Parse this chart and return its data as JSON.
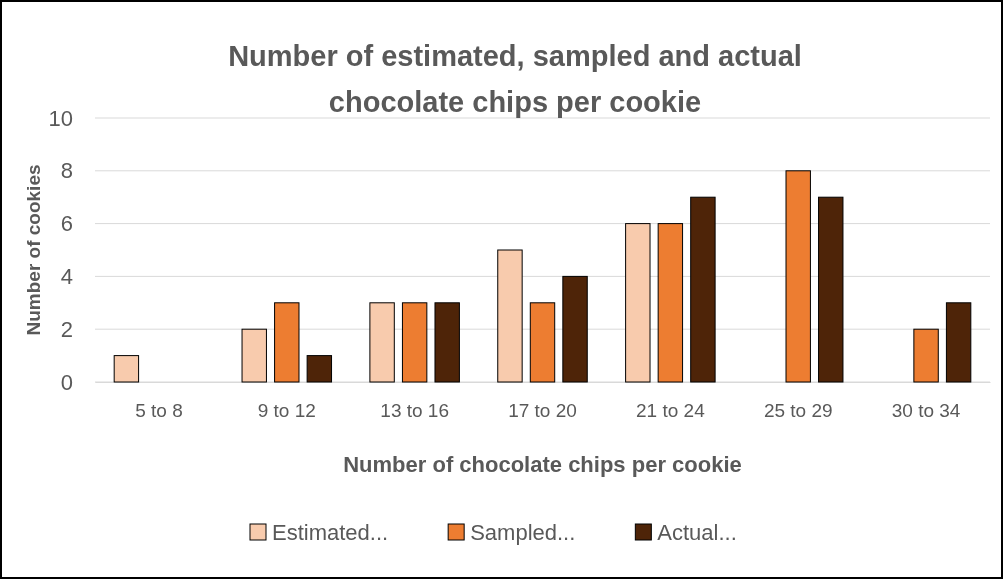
{
  "chart_data": {
    "type": "bar",
    "title": "Number of estimated, sampled and actual chocolate chips per cookie",
    "xlabel": "Number of chocolate chips per cookie",
    "ylabel": "Number of cookies",
    "categories": [
      "5 to 8",
      "9 to 12",
      "13 to 16",
      "17 to 20",
      "21 to 24",
      "25 to 29",
      "30 to 34"
    ],
    "series": [
      {
        "name": "Estimated...",
        "color": "#f8cbad",
        "values": [
          1,
          2,
          3,
          5,
          6,
          0,
          0
        ]
      },
      {
        "name": "Sampled...",
        "color": "#ed7d31",
        "values": [
          0,
          3,
          3,
          3,
          6,
          8,
          2
        ]
      },
      {
        "name": "Actual...",
        "color": "#4e2408",
        "values": [
          0,
          1,
          3,
          4,
          7,
          7,
          3
        ]
      }
    ],
    "ylim": [
      0,
      10
    ],
    "yticks": [
      0,
      2,
      4,
      6,
      8,
      10
    ],
    "grid": "y",
    "legend": "bottom"
  }
}
